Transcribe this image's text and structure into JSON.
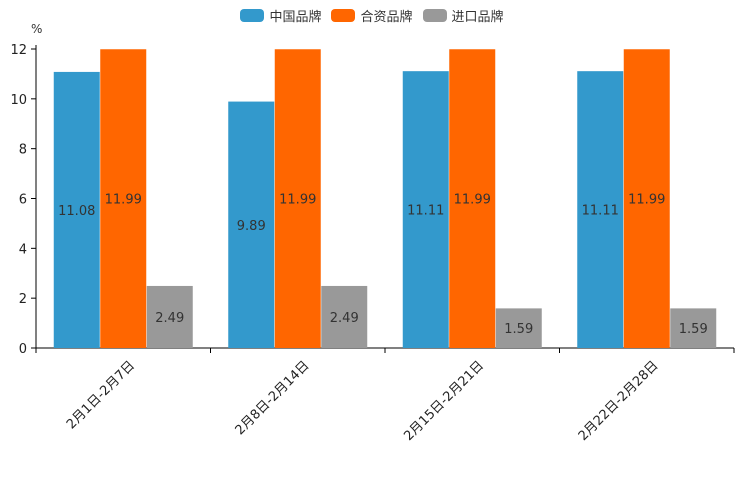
{
  "chart_data": {
    "type": "bar",
    "title": "",
    "unit_label": "%",
    "xlabel": "",
    "ylabel": "%",
    "ylim": [
      0,
      12
    ],
    "yticks": [
      0,
      2,
      4,
      6,
      8,
      10,
      12
    ],
    "categories": [
      "2月1日-2月7日",
      "2月8日-2月14日",
      "2月15日-2月21日",
      "2月22日-2月28日"
    ],
    "series": [
      {
        "name": "中国品牌",
        "color": "#3399cc",
        "values": [
          11.08,
          9.89,
          11.11,
          11.11
        ]
      },
      {
        "name": "合资品牌",
        "color": "#ff6600",
        "values": [
          11.99,
          11.99,
          11.99,
          11.99
        ]
      },
      {
        "name": "进口品牌",
        "color": "#999999",
        "values": [
          2.49,
          2.49,
          1.59,
          1.59
        ]
      }
    ],
    "legend_position": "top-center"
  }
}
